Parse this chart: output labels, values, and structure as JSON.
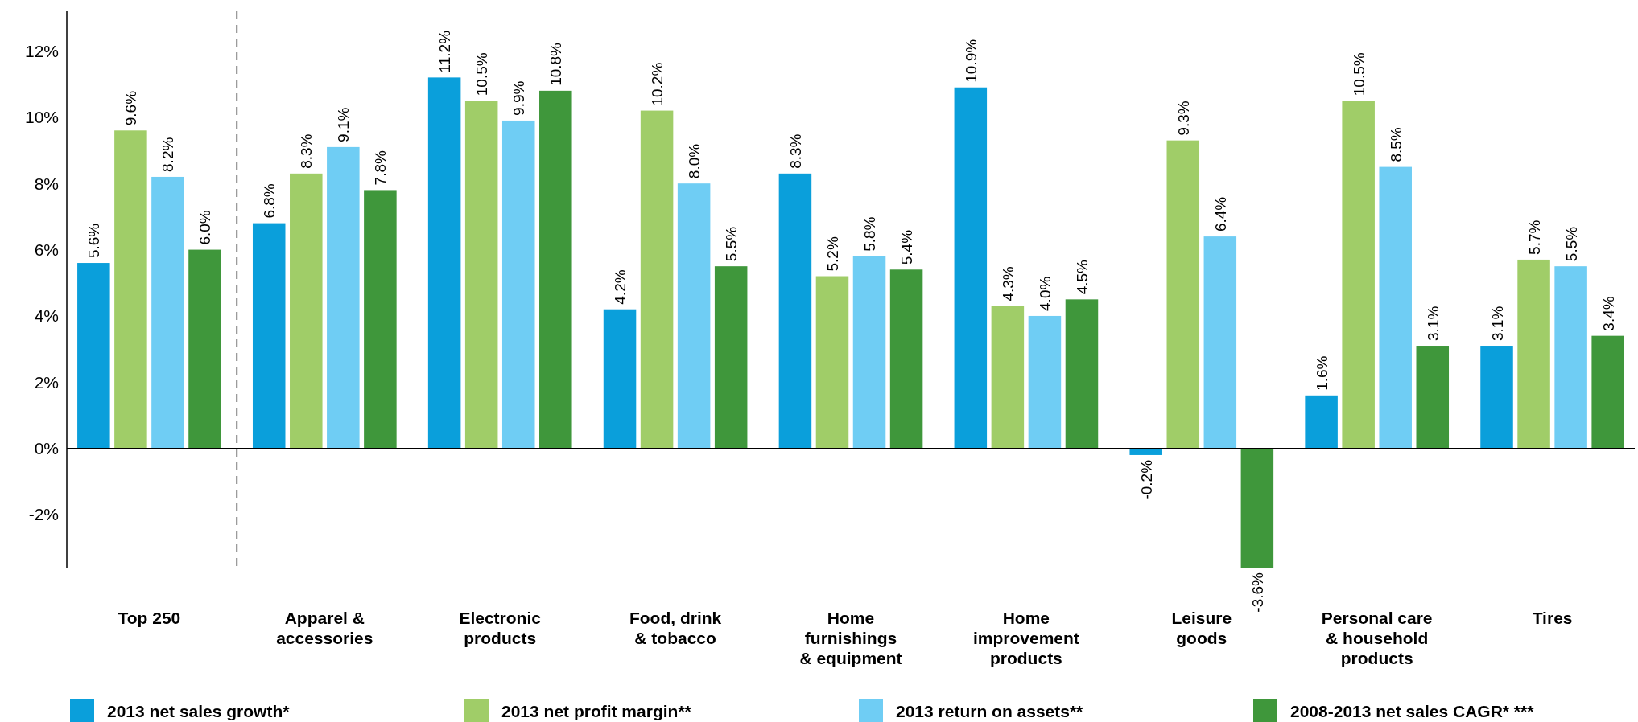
{
  "chart_data": {
    "type": "bar",
    "categories": [
      "Top 250",
      "Apparel &\naccessories",
      "Electronic\nproducts",
      "Food, drink\n& tobacco",
      "Home\nfurnishings\n& equipment",
      "Home\nimprovement\nproducts",
      "Leisure\ngoods",
      "Personal care\n& household\nproducts",
      "Tires"
    ],
    "series": [
      {
        "name": "2013 net sales growth*",
        "color": "#0a9fdb",
        "values": [
          5.6,
          6.8,
          11.2,
          4.2,
          8.3,
          10.9,
          -0.2,
          1.6,
          3.1
        ],
        "value_labels": [
          "5.6%",
          "6.8%",
          "11.2%",
          "4.2%",
          "8.3%",
          "10.9%",
          "-0.2%",
          "1.6%",
          "3.1%"
        ]
      },
      {
        "name": "2013 net profit margin**",
        "color": "#a0cd68",
        "values": [
          9.6,
          8.3,
          10.5,
          10.2,
          5.2,
          4.3,
          9.3,
          10.5,
          5.7
        ],
        "value_labels": [
          "9.6%",
          "8.3%",
          "10.5%",
          "10.2%",
          "5.2%",
          "4.3%",
          "9.3%",
          "10.5%",
          "5.7%"
        ]
      },
      {
        "name": "2013 return on assets**",
        "color": "#6fcdf4",
        "values": [
          8.2,
          9.1,
          9.9,
          8.0,
          5.8,
          4.0,
          6.4,
          8.5,
          5.5
        ],
        "value_labels": [
          "8.2%",
          "9.1%",
          "9.9%",
          "8.0%",
          "5.8%",
          "4.0%",
          "6.4%",
          "8.5%",
          "5.5%"
        ]
      },
      {
        "name": "2008-2013 net sales CAGR* ***",
        "color": "#3f973b",
        "values": [
          6.0,
          7.8,
          10.8,
          5.5,
          5.4,
          4.5,
          -3.6,
          3.1,
          3.4
        ],
        "value_labels": [
          "6.0%",
          "7.8%",
          "10.8%",
          "5.5%",
          "5.4%",
          "4.5%",
          "-3.6%",
          "3.1%",
          "3.4%"
        ]
      }
    ],
    "ylim": [
      -3.6,
      13.2
    ],
    "yticks": [
      {
        "value": -2,
        "label": "-2%"
      },
      {
        "value": 0,
        "label": "0%"
      },
      {
        "value": 2,
        "label": "2%"
      },
      {
        "value": 4,
        "label": "4%"
      },
      {
        "value": 6,
        "label": "6%"
      },
      {
        "value": 8,
        "label": "8%"
      },
      {
        "value": 10,
        "label": "10%"
      },
      {
        "value": 12,
        "label": "12%"
      }
    ],
    "legend": "bottom"
  }
}
